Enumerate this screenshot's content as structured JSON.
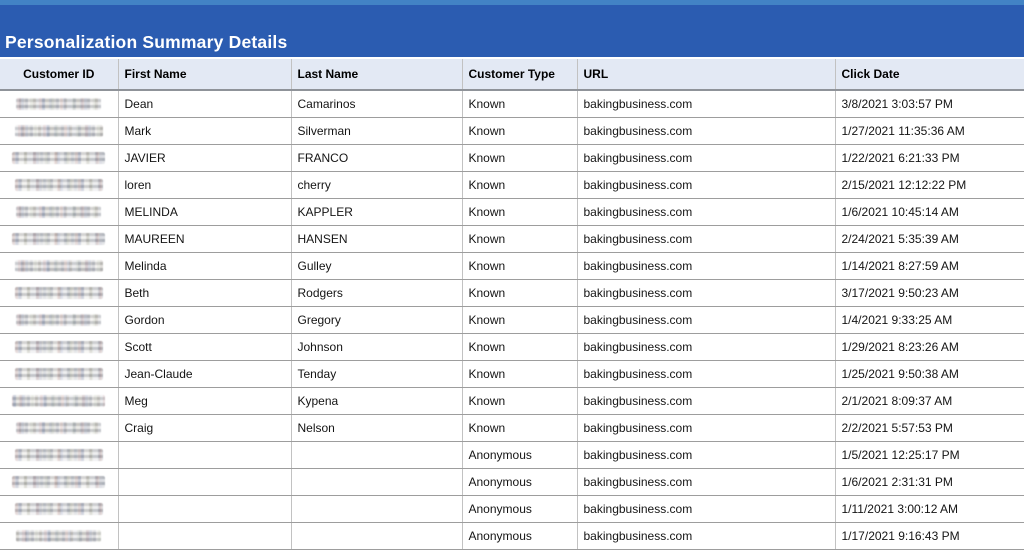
{
  "title_bar": {
    "title": "Personalization Summary Details"
  },
  "colors": {
    "top_strip": "#4283c5",
    "title_band": "#2b5cb1",
    "header_background": "#e3e9f4",
    "row_line": "#9d9d9d",
    "column_line": "#c2c2c2",
    "title_text": "#ffffff"
  },
  "table": {
    "columns": [
      {
        "key": "customer_id",
        "label": "Customer ID"
      },
      {
        "key": "first_name",
        "label": "First Name"
      },
      {
        "key": "last_name",
        "label": "Last Name"
      },
      {
        "key": "customer_type",
        "label": "Customer Type"
      },
      {
        "key": "url",
        "label": "URL"
      },
      {
        "key": "click_date",
        "label": "Click Date"
      }
    ],
    "rows": [
      {
        "customer_id_redacted": true,
        "first_name": "Dean",
        "last_name": "Camarinos",
        "customer_type": "Known",
        "url": "bakingbusiness.com",
        "click_date": "3/8/2021 3:03:57 PM"
      },
      {
        "customer_id_redacted": true,
        "first_name": "Mark",
        "last_name": "Silverman",
        "customer_type": "Known",
        "url": "bakingbusiness.com",
        "click_date": "1/27/2021 11:35:36 AM"
      },
      {
        "customer_id_redacted": true,
        "first_name": "JAVIER",
        "last_name": "FRANCO",
        "customer_type": "Known",
        "url": "bakingbusiness.com",
        "click_date": "1/22/2021 6:21:33 PM"
      },
      {
        "customer_id_redacted": true,
        "first_name": "loren",
        "last_name": "cherry",
        "customer_type": "Known",
        "url": "bakingbusiness.com",
        "click_date": "2/15/2021 12:12:22 PM"
      },
      {
        "customer_id_redacted": true,
        "first_name": "MELINDA",
        "last_name": "KAPPLER",
        "customer_type": "Known",
        "url": "bakingbusiness.com",
        "click_date": "1/6/2021 10:45:14 AM"
      },
      {
        "customer_id_redacted": true,
        "first_name": "MAUREEN",
        "last_name": "HANSEN",
        "customer_type": "Known",
        "url": "bakingbusiness.com",
        "click_date": "2/24/2021 5:35:39 AM"
      },
      {
        "customer_id_redacted": true,
        "first_name": "Melinda",
        "last_name": "Gulley",
        "customer_type": "Known",
        "url": "bakingbusiness.com",
        "click_date": "1/14/2021 8:27:59 AM"
      },
      {
        "customer_id_redacted": true,
        "first_name": "Beth",
        "last_name": "Rodgers",
        "customer_type": "Known",
        "url": "bakingbusiness.com",
        "click_date": "3/17/2021 9:50:23 AM"
      },
      {
        "customer_id_redacted": true,
        "first_name": "Gordon",
        "last_name": "Gregory",
        "customer_type": "Known",
        "url": "bakingbusiness.com",
        "click_date": "1/4/2021 9:33:25 AM"
      },
      {
        "customer_id_redacted": true,
        "first_name": "Scott",
        "last_name": "Johnson",
        "customer_type": "Known",
        "url": "bakingbusiness.com",
        "click_date": "1/29/2021 8:23:26 AM"
      },
      {
        "customer_id_redacted": true,
        "first_name": "Jean-Claude",
        "last_name": "Tenday",
        "customer_type": "Known",
        "url": "bakingbusiness.com",
        "click_date": "1/25/2021 9:50:38 AM"
      },
      {
        "customer_id_redacted": true,
        "first_name": "Meg",
        "last_name": "Kypena",
        "customer_type": "Known",
        "url": "bakingbusiness.com",
        "click_date": "2/1/2021 8:09:37 AM"
      },
      {
        "customer_id_redacted": true,
        "first_name": "Craig",
        "last_name": "Nelson",
        "customer_type": "Known",
        "url": "bakingbusiness.com",
        "click_date": "2/2/2021 5:57:53 PM"
      },
      {
        "customer_id_redacted": true,
        "first_name": "",
        "last_name": "",
        "customer_type": "Anonymous",
        "url": "bakingbusiness.com",
        "click_date": "1/5/2021 12:25:17 PM"
      },
      {
        "customer_id_redacted": true,
        "first_name": "",
        "last_name": "",
        "customer_type": "Anonymous",
        "url": "bakingbusiness.com",
        "click_date": "1/6/2021 2:31:31 PM"
      },
      {
        "customer_id_redacted": true,
        "first_name": "",
        "last_name": "",
        "customer_type": "Anonymous",
        "url": "bakingbusiness.com",
        "click_date": "1/11/2021 3:00:12 AM"
      },
      {
        "customer_id_redacted": true,
        "first_name": "",
        "last_name": "",
        "customer_type": "Anonymous",
        "url": "bakingbusiness.com",
        "click_date": "1/17/2021 9:16:43 PM"
      }
    ]
  }
}
